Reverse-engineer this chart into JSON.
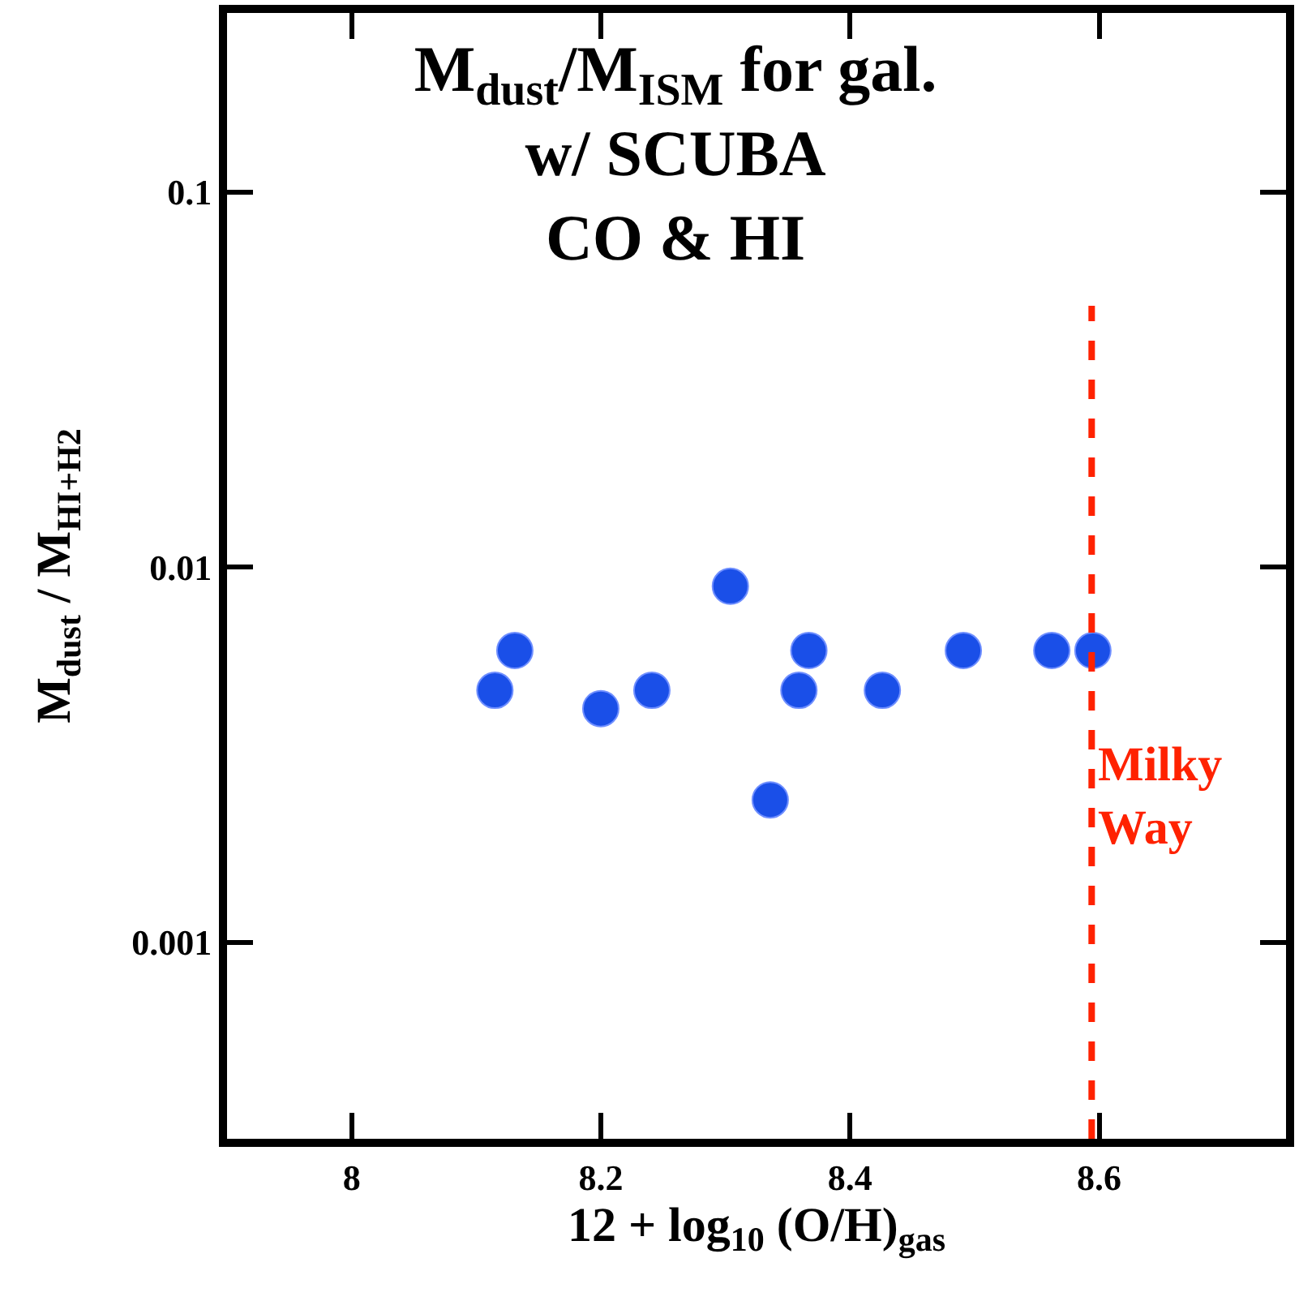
{
  "chart_data": {
    "type": "scatter",
    "title": "M$_{dust}$/M$_{ISM}$ for gal.\nw/ SCUBA\nCO & HI",
    "xlabel": "12 + log$_{10}$ (O/H)$_{gas}$",
    "ylabel": "M$_{dust}$ / M$_{HI+H2}$",
    "x": [
      8.115,
      8.131,
      8.2,
      8.241,
      8.304,
      8.336,
      8.359,
      8.367,
      8.426,
      8.491,
      8.562,
      8.595
    ],
    "series": [
      {
        "color": "#1a4fe8",
        "values": [
          0.0047,
          0.006,
          0.0042,
          0.0047,
          0.0089,
          0.0024,
          0.0047,
          0.006,
          0.0047,
          0.006,
          0.006,
          0.006
        ]
      }
    ],
    "xlim": [
      7.9,
      8.75
    ],
    "xticks": [
      8,
      8.2,
      8.4,
      8.6
    ],
    "ylim": [
      0.0003,
      0.3
    ],
    "yticks": [
      0.001,
      0.01,
      0.1
    ],
    "log": "y",
    "legend": false,
    "marker": "circle",
    "ref_lines": [
      {
        "axis": "x",
        "value": 8.594,
        "label": "Milky\nWay",
        "color": "#ff2200",
        "line_style": "dashed"
      }
    ]
  }
}
